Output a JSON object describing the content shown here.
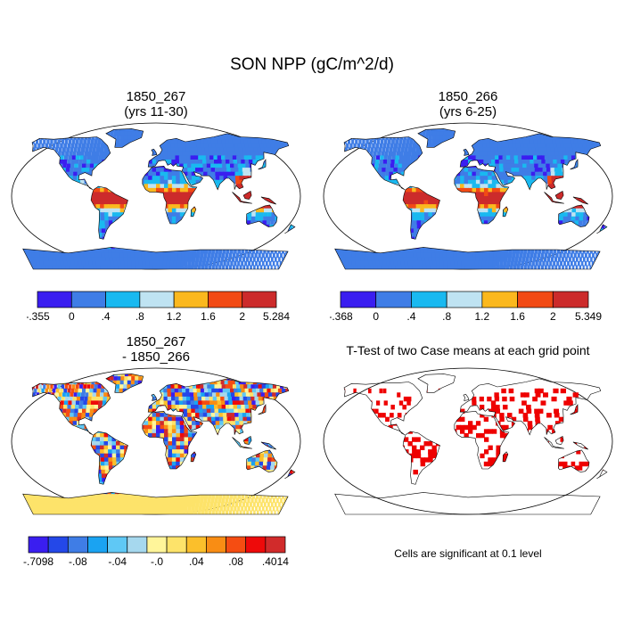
{
  "title": "SON NPP (gC/m^2/d)",
  "panels": [
    {
      "title_line1": "1850_267",
      "title_line2": "(yrs 11-30)"
    },
    {
      "title_line1": "1850_266",
      "title_line2": "(yrs 6-25)"
    },
    {
      "title_line1": "1850_267",
      "title_line2": "- 1850_266"
    },
    {
      "title_line1": "T-Test of two Case means at each grid point",
      "title_line2": ""
    }
  ],
  "significance_note": "Cells are significant at 0.1 level",
  "chart_data": [
    {
      "type": "heatmap",
      "map": "world (Robinson projection)",
      "title": "1850_267 (yrs 11-30)",
      "colorbar": {
        "labels": [
          "-.355",
          "0",
          ".4",
          ".8",
          "1.2",
          "1.6",
          "2",
          "5.284"
        ],
        "min": -0.355,
        "max": 5.284,
        "bounds": [
          -0.355,
          0,
          0.4,
          0.8,
          1.2,
          1.6,
          2,
          5.284
        ],
        "colors": [
          "#3a1ef0",
          "#3f7de6",
          "#19b9f0",
          "#bfe3f2",
          "#fbb81e",
          "#f24a14",
          "#cc2b2b"
        ]
      }
    },
    {
      "type": "heatmap",
      "map": "world (Robinson projection)",
      "title": "1850_266 (yrs 6-25)",
      "colorbar": {
        "labels": [
          "-.368",
          "0",
          ".4",
          ".8",
          "1.2",
          "1.6",
          "2",
          "5.349"
        ],
        "min": -0.368,
        "max": 5.349,
        "bounds": [
          -0.368,
          0,
          0.4,
          0.8,
          1.2,
          1.6,
          2,
          5.349
        ],
        "colors": [
          "#3a1ef0",
          "#3f7de6",
          "#19b9f0",
          "#bfe3f2",
          "#fbb81e",
          "#f24a14",
          "#cc2b2b"
        ]
      }
    },
    {
      "type": "heatmap",
      "map": "world (Robinson projection)",
      "title": "1850_267 - 1850_266",
      "colorbar": {
        "labels": [
          "-.7098",
          "-.08",
          "-.04",
          "-.0",
          ".04",
          ".08",
          ".4014"
        ],
        "min": -0.7098,
        "max": 0.4014,
        "colors": [
          "#3a1ef0",
          "#2448e8",
          "#3f7de6",
          "#1aa3f2",
          "#5fc8f5",
          "#a6d8ee",
          "#fff59a",
          "#fde36a",
          "#fbbf2b",
          "#f98d14",
          "#f54d12",
          "#ee0a0a",
          "#d12b2b"
        ],
        "label_positions": [
          0,
          2,
          4,
          6,
          8,
          10,
          12
        ]
      }
    },
    {
      "type": "heatmap",
      "map": "world (Robinson projection)",
      "title": "T-Test of two Case means at each grid point",
      "significant_color": "#ee0000"
    }
  ]
}
